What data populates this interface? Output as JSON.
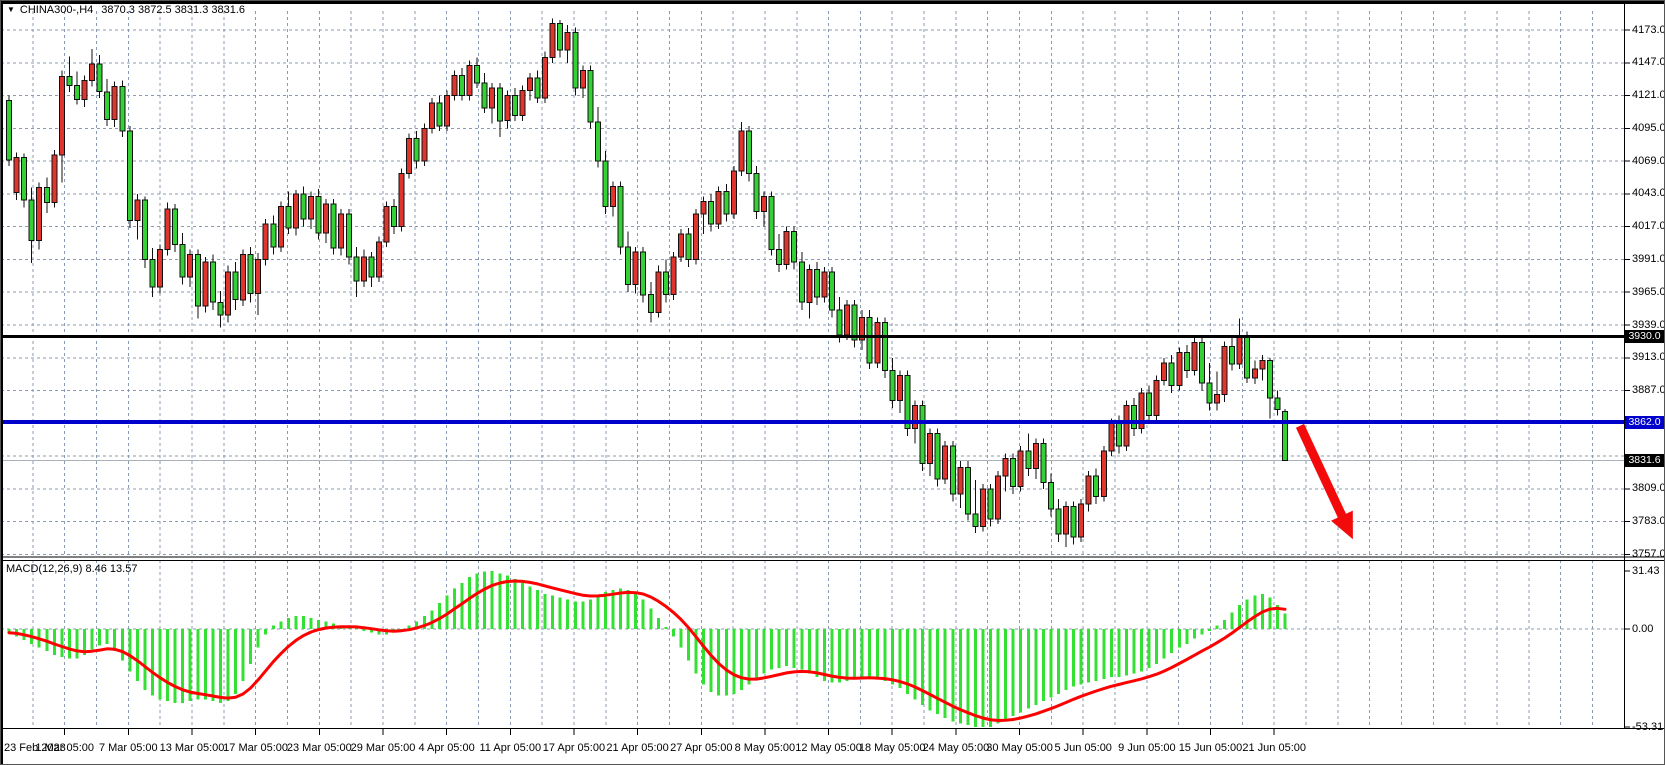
{
  "window": {
    "symbol_label": "CHINA300-,H4",
    "ohlc_label": "3870.3 3872.5 3831.3 3831.6",
    "open": "3870.3",
    "high": "3872.5",
    "low": "3831.3",
    "close": "3831.6"
  },
  "macd_panel": {
    "indicator_label": "MACD(12,26,9) 8.46 13.57",
    "main_value": "8.46",
    "signal_value": "13.57"
  },
  "colors": {
    "background": "#ffffff",
    "grid": "#8a9bb2",
    "candle_up": "#df352c",
    "candle_down": "#33d133",
    "candle_border": "#111111",
    "wick": "#111111",
    "macd_bar": "#33e033",
    "macd_signal": "#ff0000",
    "hline_black": "#000000",
    "hline_blue": "#0000cc",
    "current_price_line": "#a8b0ba",
    "badge_black_bg": "#000000",
    "badge_blue_bg": "#0000cc",
    "badge_text": "#ffffff",
    "axis_text": "#000000",
    "arrow": "#f30b0b",
    "border": "#000000"
  },
  "chart_data": [
    {
      "type": "candlestick",
      "symbol": "CHINA300-",
      "timeframe": "H4",
      "y_axis": {
        "max": 4173.0,
        "min": 3757.0,
        "step": 26,
        "labels": [
          "4173.0",
          "4147.0",
          "4121.0",
          "4095.0",
          "4069.0",
          "4043.0",
          "4017.0",
          "3991.0",
          "3965.0",
          "3939.0",
          "3913.0",
          "3887.0",
          "3809.0",
          "3783.0",
          "3757.0"
        ]
      },
      "x_labels": [
        "23 Feb 2023",
        "1 Mar 05:00",
        "7 Mar 05:00",
        "13 Mar 05:00",
        "17 Mar 05:00",
        "23 Mar 05:00",
        "29 Mar 05:00",
        "4 Apr 05:00",
        "11 Apr 05:00",
        "17 Apr 05:00",
        "21 Apr 05:00",
        "27 Apr 05:00",
        "8 May 05:00",
        "12 May 05:00",
        "18 May 05:00",
        "24 May 05:00",
        "30 May 05:00",
        "5 Jun 05:00",
        "9 Jun 05:00",
        "15 Jun 05:00",
        "21 Jun 05:00"
      ],
      "hlines": [
        {
          "name": "resistance-line",
          "price": 3930.0,
          "label": "3930.0",
          "color": "#000000",
          "width": 3,
          "badge_bg": "#000000"
        },
        {
          "name": "support-line",
          "price": 3862.0,
          "label": "3862.0",
          "color": "#0000cc",
          "width": 4,
          "badge_bg": "#0000cc"
        },
        {
          "name": "current-price-line",
          "price": 3831.6,
          "label": "3831.6",
          "color": "#a8b0ba",
          "width": 1,
          "badge_bg": "#000000"
        }
      ],
      "annotation_arrow": {
        "from_bar": 171,
        "from_price": 3859,
        "to_bar": 178,
        "to_price": 3769
      },
      "candles_ohlc": [
        [
          4117,
          4121,
          4065,
          4070
        ],
        [
          4044,
          4076,
          4038,
          4072
        ],
        [
          4072,
          4075,
          4032,
          4038
        ],
        [
          4038,
          4048,
          3988,
          4006
        ],
        [
          4006,
          4052,
          3999,
          4048
        ],
        [
          4048,
          4056,
          4028,
          4036
        ],
        [
          4036,
          4078,
          4032,
          4074
        ],
        [
          4074,
          4141,
          4052,
          4136
        ],
        [
          4136,
          4152,
          4124,
          4129
        ],
        [
          4129,
          4140,
          4114,
          4118
        ],
        [
          4118,
          4137,
          4112,
          4133
        ],
        [
          4133,
          4158,
          4128,
          4146
        ],
        [
          4146,
          4153,
          4119,
          4124
        ],
        [
          4124,
          4134,
          4097,
          4102
        ],
        [
          4102,
          4132,
          4096,
          4128
        ],
        [
          4128,
          4133,
          4088,
          4093
        ],
        [
          4093,
          4097,
          4016,
          4022
        ],
        [
          4022,
          4043,
          4007,
          4038
        ],
        [
          4038,
          4041,
          3984,
          3991
        ],
        [
          3991,
          4000,
          3961,
          3969
        ],
        [
          3969,
          4003,
          3964,
          3999
        ],
        [
          3999,
          4036,
          3994,
          4031
        ],
        [
          4031,
          4035,
          3997,
          4003
        ],
        [
          4003,
          4012,
          3971,
          3977
        ],
        [
          3977,
          3999,
          3969,
          3995
        ],
        [
          3995,
          3999,
          3944,
          3954
        ],
        [
          3954,
          3993,
          3949,
          3989
        ],
        [
          3989,
          3995,
          3951,
          3957
        ],
        [
          3957,
          3966,
          3937,
          3947
        ],
        [
          3947,
          3986,
          3941,
          3981
        ],
        [
          3981,
          3989,
          3951,
          3959
        ],
        [
          3959,
          3999,
          3954,
          3995
        ],
        [
          3995,
          4001,
          3957,
          3964
        ],
        [
          3964,
          3996,
          3947,
          3991
        ],
        [
          3991,
          4023,
          3986,
          4019
        ],
        [
          4019,
          4026,
          3995,
          4001
        ],
        [
          4001,
          4037,
          3997,
          4033
        ],
        [
          4033,
          4045,
          4011,
          4016
        ],
        [
          4016,
          4046,
          4010,
          4043
        ],
        [
          4043,
          4049,
          4017,
          4023
        ],
        [
          4023,
          4045,
          4015,
          4041
        ],
        [
          4041,
          4047,
          4007,
          4012
        ],
        [
          4012,
          4039,
          4004,
          4035
        ],
        [
          4035,
          4039,
          3995,
          4000
        ],
        [
          4000,
          4031,
          3994,
          4027
        ],
        [
          4027,
          4031,
          3987,
          3993
        ],
        [
          3993,
          4001,
          3961,
          3974
        ],
        [
          3974,
          3999,
          3969,
          3993
        ],
        [
          3993,
          3997,
          3969,
          3977
        ],
        [
          3977,
          4009,
          3973,
          4005
        ],
        [
          4005,
          4037,
          4001,
          4033
        ],
        [
          4033,
          4039,
          4011,
          4017
        ],
        [
          4017,
          4063,
          4013,
          4059
        ],
        [
          4059,
          4091,
          4055,
          4087
        ],
        [
          4087,
          4093,
          4063,
          4069
        ],
        [
          4069,
          4099,
          4065,
          4095
        ],
        [
          4095,
          4119,
          4091,
          4115
        ],
        [
          4115,
          4121,
          4093,
          4097
        ],
        [
          4097,
          4125,
          4093,
          4121
        ],
        [
          4121,
          4141,
          4117,
          4137
        ],
        [
          4137,
          4143,
          4117,
          4121
        ],
        [
          4121,
          4149,
          4117,
          4145
        ],
        [
          4145,
          4151,
          4127,
          4131
        ],
        [
          4131,
          4139,
          4107,
          4111
        ],
        [
          4111,
          4131,
          4099,
          4127
        ],
        [
          4127,
          4131,
          4088,
          4101
        ],
        [
          4101,
          4125,
          4095,
          4121
        ],
        [
          4121,
          4127,
          4101,
          4105
        ],
        [
          4105,
          4129,
          4101,
          4125
        ],
        [
          4125,
          4139,
          4117,
          4135
        ],
        [
          4135,
          4141,
          4115,
          4119
        ],
        [
          4119,
          4156,
          4115,
          4151
        ],
        [
          4151,
          4182,
          4147,
          4178
        ],
        [
          4178,
          4181,
          4151,
          4157
        ],
        [
          4157,
          4177,
          4147,
          4171
        ],
        [
          4171,
          4175,
          4121,
          4127
        ],
        [
          4127,
          4145,
          4119,
          4141
        ],
        [
          4141,
          4145,
          4095,
          4100
        ],
        [
          4100,
          4112,
          4064,
          4069
        ],
        [
          4069,
          4077,
          4027,
          4033
        ],
        [
          4033,
          4053,
          4025,
          4049
        ],
        [
          4049,
          4053,
          3995,
          4001
        ],
        [
          4001,
          4013,
          3965,
          3971
        ],
        [
          3971,
          4001,
          3964,
          3997
        ],
        [
          3997,
          4001,
          3957,
          3963
        ],
        [
          3963,
          3973,
          3941,
          3949
        ],
        [
          3949,
          3986,
          3945,
          3981
        ],
        [
          3981,
          3991,
          3957,
          3963
        ],
        [
          3963,
          3997,
          3959,
          3993
        ],
        [
          3993,
          4015,
          3989,
          4011
        ],
        [
          4011,
          4016,
          3985,
          3991
        ],
        [
          3991,
          4031,
          3987,
          4027
        ],
        [
          4027,
          4041,
          4011,
          4037
        ],
        [
          4037,
          4043,
          4013,
          4019
        ],
        [
          4019,
          4049,
          4015,
          4045
        ],
        [
          4045,
          4051,
          4021,
          4027
        ],
        [
          4027,
          4065,
          4023,
          4061
        ],
        [
          4061,
          4100,
          4057,
          4093
        ],
        [
          4093,
          4097,
          4053,
          4059
        ],
        [
          4059,
          4065,
          4023,
          4029
        ],
        [
          4029,
          4045,
          4017,
          4041
        ],
        [
          4041,
          4045,
          3994,
          3999
        ],
        [
          3999,
          4011,
          3981,
          3987
        ],
        [
          3987,
          4017,
          3983,
          4013
        ],
        [
          4013,
          4017,
          3983,
          3989
        ],
        [
          3989,
          3997,
          3951,
          3957
        ],
        [
          3957,
          3987,
          3944,
          3983
        ],
        [
          3983,
          3989,
          3955,
          3961
        ],
        [
          3961,
          3985,
          3957,
          3981
        ],
        [
          3981,
          3985,
          3945,
          3951
        ],
        [
          3951,
          3961,
          3925,
          3931
        ],
        [
          3931,
          3959,
          3927,
          3955
        ],
        [
          3955,
          3959,
          3921,
          3927
        ],
        [
          3927,
          3951,
          3919,
          3945
        ],
        [
          3945,
          3951,
          3904,
          3909
        ],
        [
          3909,
          3945,
          3905,
          3941
        ],
        [
          3941,
          3945,
          3897,
          3903
        ],
        [
          3903,
          3913,
          3873,
          3879
        ],
        [
          3879,
          3903,
          3869,
          3899
        ],
        [
          3899,
          3903,
          3851,
          3857
        ],
        [
          3857,
          3879,
          3845,
          3875
        ],
        [
          3875,
          3879,
          3823,
          3829
        ],
        [
          3829,
          3857,
          3819,
          3853
        ],
        [
          3853,
          3857,
          3811,
          3817
        ],
        [
          3817,
          3847,
          3813,
          3843
        ],
        [
          3843,
          3847,
          3799,
          3805
        ],
        [
          3805,
          3831,
          3794,
          3826
        ],
        [
          3826,
          3831,
          3784,
          3789
        ],
        [
          3789,
          3816,
          3774,
          3779
        ],
        [
          3779,
          3813,
          3775,
          3809
        ],
        [
          3809,
          3813,
          3779,
          3785
        ],
        [
          3785,
          3823,
          3781,
          3819
        ],
        [
          3819,
          3837,
          3807,
          3833
        ],
        [
          3833,
          3837,
          3805,
          3811
        ],
        [
          3811,
          3843,
          3807,
          3839
        ],
        [
          3839,
          3853,
          3819,
          3825
        ],
        [
          3825,
          3849,
          3817,
          3845
        ],
        [
          3845,
          3849,
          3809,
          3814
        ],
        [
          3814,
          3821,
          3787,
          3793
        ],
        [
          3793,
          3801,
          3767,
          3773
        ],
        [
          3773,
          3799,
          3763,
          3795
        ],
        [
          3795,
          3799,
          3765,
          3771
        ],
        [
          3771,
          3801,
          3767,
          3797
        ],
        [
          3797,
          3823,
          3791,
          3819
        ],
        [
          3819,
          3825,
          3797,
          3803
        ],
        [
          3803,
          3843,
          3799,
          3839
        ],
        [
          3839,
          3865,
          3835,
          3861
        ],
        [
          3861,
          3867,
          3837,
          3843
        ],
        [
          3843,
          3879,
          3839,
          3875
        ],
        [
          3875,
          3881,
          3851,
          3857
        ],
        [
          3857,
          3889,
          3853,
          3885
        ],
        [
          3885,
          3891,
          3861,
          3867
        ],
        [
          3867,
          3899,
          3863,
          3895
        ],
        [
          3895,
          3913,
          3891,
          3909
        ],
        [
          3909,
          3915,
          3885,
          3891
        ],
        [
          3891,
          3921,
          3887,
          3917
        ],
        [
          3917,
          3923,
          3897,
          3903
        ],
        [
          3903,
          3929,
          3899,
          3925
        ],
        [
          3925,
          3929,
          3887,
          3893
        ],
        [
          3893,
          3909,
          3871,
          3877
        ],
        [
          3877,
          3902,
          3871,
          3884
        ],
        [
          3884,
          3926,
          3878,
          3922
        ],
        [
          3922,
          3931,
          3903,
          3908
        ],
        [
          3908,
          3944,
          3904,
          3930
        ],
        [
          3930,
          3934,
          3893,
          3897
        ],
        [
          3897,
          3911,
          3892,
          3904
        ],
        [
          3904,
          3915,
          3895,
          3911
        ],
        [
          3911,
          3913,
          3865,
          3881
        ],
        [
          3881,
          3887,
          3867,
          3872
        ],
        [
          3870.3,
          3872.5,
          3831.3,
          3831.6
        ]
      ]
    },
    {
      "type": "bar",
      "title": "MACD(12,26,9)",
      "main_last": 8.46,
      "signal_last": 13.57,
      "signal_smoothing": 0.2,
      "y_max": 31.43,
      "y_min": -53.31,
      "y_labels": [
        "31.43",
        "0.00",
        "-53.31"
      ],
      "values": [
        -2,
        -4,
        -6,
        -8,
        -10,
        -12,
        -14,
        -15,
        -16,
        -16,
        -14,
        -11,
        -9,
        -8,
        -12,
        -17,
        -23,
        -28,
        -33,
        -36,
        -38,
        -39,
        -40,
        -40,
        -39,
        -38,
        -38,
        -39,
        -40,
        -39,
        -35,
        -28,
        -19,
        -10,
        -3,
        2,
        4,
        6,
        7,
        7,
        6,
        5,
        4,
        3,
        2,
        1,
        1,
        -1,
        -2,
        -3,
        -3,
        -2,
        0,
        2,
        4,
        7,
        10,
        14,
        18,
        22,
        25,
        28,
        30,
        31,
        31.43,
        30,
        29,
        27,
        25,
        23,
        21,
        19,
        18,
        17,
        16,
        15,
        15,
        16,
        18,
        20,
        21,
        22,
        21,
        19,
        16,
        11,
        6,
        1,
        -4,
        -10,
        -17,
        -24,
        -30,
        -34,
        -36,
        -36,
        -35,
        -33,
        -30,
        -27,
        -24,
        -22,
        -21,
        -20,
        -21,
        -22,
        -24,
        -26,
        -28,
        -29,
        -29,
        -28,
        -27,
        -26,
        -26,
        -27,
        -28,
        -30,
        -32,
        -35,
        -38,
        -41,
        -44,
        -46,
        -48,
        -50,
        -51,
        -52,
        -53,
        -53.31,
        -53,
        -51,
        -49,
        -47,
        -45,
        -43,
        -41,
        -39,
        -37,
        -35,
        -33,
        -31,
        -30,
        -29,
        -28,
        -27,
        -26,
        -26,
        -25,
        -24,
        -23,
        -21,
        -19,
        -16,
        -13,
        -10,
        -8,
        -5,
        -3,
        -1,
        2,
        5,
        9,
        13,
        16,
        18,
        19,
        17,
        13,
        8.46
      ]
    }
  ]
}
